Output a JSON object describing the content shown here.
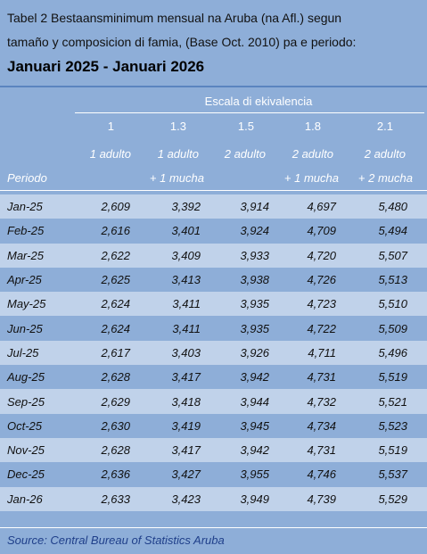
{
  "title_line1": "Tabel 2 Bestaansminimum mensual na Aruba (na Afl.) segun",
  "title_line2": "tamaño y composicion di famia, (Base Oct. 2010) pa e periodo:",
  "subtitle": "Januari 2025 - Januari 2026",
  "scale_header": "Escala di ekivalencia",
  "scale_values": [
    "1",
    "1.3",
    "1.5",
    "1.8",
    "2.1"
  ],
  "composition_line1": [
    "1 adulto",
    "1 adulto",
    "2 adulto",
    "2 adulto",
    "2 adulto"
  ],
  "composition_line2": [
    "",
    "+ 1 mucha",
    "",
    "+ 1 mucha",
    "+ 2 mucha"
  ],
  "period_header": "Periodo",
  "rows": [
    {
      "period": "Jan-25",
      "values": [
        "2,609",
        "3,392",
        "3,914",
        "4,697",
        "5,480"
      ]
    },
    {
      "period": "Feb-25",
      "values": [
        "2,616",
        "3,401",
        "3,924",
        "4,709",
        "5,494"
      ]
    },
    {
      "period": "Mar-25",
      "values": [
        "2,622",
        "3,409",
        "3,933",
        "4,720",
        "5,507"
      ]
    },
    {
      "period": "Apr-25",
      "values": [
        "2,625",
        "3,413",
        "3,938",
        "4,726",
        "5,513"
      ]
    },
    {
      "period": "May-25",
      "values": [
        "2,624",
        "3,411",
        "3,935",
        "4,723",
        "5,510"
      ]
    },
    {
      "period": "Jun-25",
      "values": [
        "2,624",
        "3,411",
        "3,935",
        "4,722",
        "5,509"
      ]
    },
    {
      "period": "Jul-25",
      "values": [
        "2,617",
        "3,403",
        "3,926",
        "4,711",
        "5,496"
      ]
    },
    {
      "period": "Aug-25",
      "values": [
        "2,628",
        "3,417",
        "3,942",
        "4,731",
        "5,519"
      ]
    },
    {
      "period": "Sep-25",
      "values": [
        "2,629",
        "3,418",
        "3,944",
        "4,732",
        "5,521"
      ]
    },
    {
      "period": "Oct-25",
      "values": [
        "2,630",
        "3,419",
        "3,945",
        "4,734",
        "5,523"
      ]
    },
    {
      "period": "Nov-25",
      "values": [
        "2,628",
        "3,417",
        "3,942",
        "4,731",
        "5,519"
      ]
    },
    {
      "period": "Dec-25",
      "values": [
        "2,636",
        "3,427",
        "3,955",
        "4,746",
        "5,537"
      ]
    },
    {
      "period": "Jan-26",
      "values": [
        "2,633",
        "3,423",
        "3,949",
        "4,739",
        "5,529"
      ]
    }
  ],
  "source": "Source: Central Bureau of Statistics Aruba"
}
